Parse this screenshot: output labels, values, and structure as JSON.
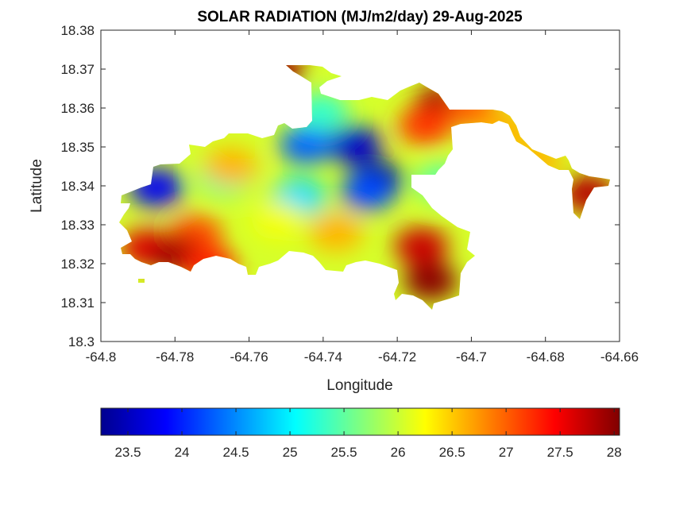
{
  "chart_data": {
    "type": "heatmap",
    "title": "SOLAR RADIATION (MJ/m2/day) 29-Aug-2025",
    "xlabel": "Longitude",
    "ylabel": "Latitude",
    "xlim": [
      -64.8,
      -64.66
    ],
    "ylim": [
      18.3,
      18.38
    ],
    "x_ticks": [
      "-64.8",
      "-64.78",
      "-64.76",
      "-64.74",
      "-64.72",
      "-64.7",
      "-64.68",
      "-64.66"
    ],
    "y_ticks": [
      "18.3",
      "18.31",
      "18.32",
      "18.33",
      "18.34",
      "18.35",
      "18.36",
      "18.37",
      "18.38"
    ],
    "colorbar": {
      "colormap": "jet",
      "range": [
        23.25,
        28.05
      ],
      "ticks": [
        "23.5",
        "24",
        "24.5",
        "25",
        "25.5",
        "26",
        "26.5",
        "27",
        "27.5",
        "28"
      ]
    },
    "value_centers": [
      {
        "lon": -64.7255,
        "lat": 18.3415,
        "value": 23.3
      },
      {
        "lon": -64.7315,
        "lat": 18.3505,
        "value": 23.6
      },
      {
        "lon": -64.785,
        "lat": 18.3395,
        "value": 23.8
      },
      {
        "lon": -64.7445,
        "lat": 18.3505,
        "value": 24.3
      },
      {
        "lon": -64.7465,
        "lat": 18.337,
        "value": 24.9
      },
      {
        "lon": -64.7405,
        "lat": 18.359,
        "value": 25.3
      },
      {
        "lon": -64.7665,
        "lat": 18.3425,
        "value": 25.4
      },
      {
        "lon": -64.765,
        "lat": 18.345,
        "value": 26.6
      },
      {
        "lon": -64.752,
        "lat": 18.331,
        "value": 26.2
      },
      {
        "lon": -64.7365,
        "lat": 18.328,
        "value": 26.6
      },
      {
        "lon": -64.728,
        "lat": 18.3385,
        "value": 24.2
      },
      {
        "lon": -64.7745,
        "lat": 18.3275,
        "value": 27.1
      },
      {
        "lon": -64.7875,
        "lat": 18.324,
        "value": 27.6
      },
      {
        "lon": -64.7795,
        "lat": 18.322,
        "value": 27.9
      },
      {
        "lon": -64.7135,
        "lat": 18.3245,
        "value": 27.7
      },
      {
        "lon": -64.711,
        "lat": 18.3155,
        "value": 28.0
      },
      {
        "lon": -64.708,
        "lat": 18.361,
        "value": 27.9
      },
      {
        "lon": -64.7125,
        "lat": 18.3555,
        "value": 27.2
      },
      {
        "lon": -64.6995,
        "lat": 18.3595,
        "value": 27.0
      },
      {
        "lon": -64.691,
        "lat": 18.3545,
        "value": 26.6
      },
      {
        "lon": -64.6825,
        "lat": 18.3465,
        "value": 26.6
      },
      {
        "lon": -64.6685,
        "lat": 18.338,
        "value": 27.8
      },
      {
        "lon": -64.7525,
        "lat": 18.3695,
        "value": 27.9
      },
      {
        "lon": -64.7705,
        "lat": 18.3195,
        "value": 27.3
      },
      {
        "lon": -64.708,
        "lat": 18.341,
        "value": 25.5
      }
    ]
  }
}
